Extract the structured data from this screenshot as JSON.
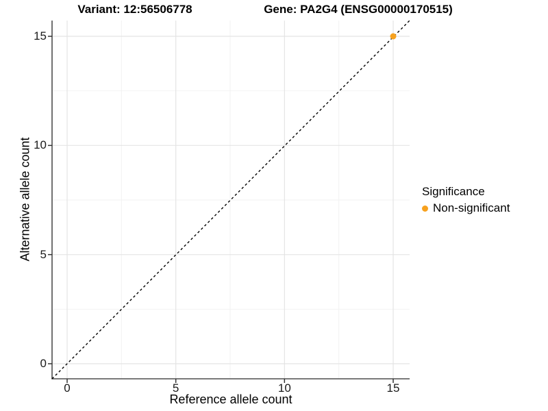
{
  "titles": {
    "variant": "Variant: 12:56506778",
    "gene": "Gene: PA2G4 (ENSG00000170515)"
  },
  "legend": {
    "title": "Significance",
    "items": [
      {
        "label": "Non-significant",
        "color": "#F7A11E"
      }
    ]
  },
  "colors": {
    "point_orange": "#F7A11E",
    "grid_major": "#e4e4e4",
    "grid_minor": "#f2f2f2",
    "axis_line": "#4d4d4d",
    "tick_mark": "#333333",
    "reference_line": "#000000"
  },
  "chart_data": {
    "type": "scatter",
    "title_left": "Variant: 12:56506778",
    "title_right": "Gene: PA2G4 (ENSG00000170515)",
    "xlabel": "Reference allele count",
    "ylabel": "Alternative allele count",
    "xlim": [
      -0.7,
      15.7
    ],
    "ylim": [
      -0.7,
      15.7
    ],
    "xticks": [
      0,
      5,
      10,
      15
    ],
    "yticks": [
      0,
      5,
      10,
      15
    ],
    "minor_gridlines": [
      2.5,
      7.5,
      12.5
    ],
    "grid": true,
    "reference_line": {
      "type": "identity",
      "style": "dashed",
      "color": "#000000"
    },
    "legend": {
      "title": "Significance",
      "position": "right"
    },
    "series": [
      {
        "name": "Non-significant",
        "color": "#F7A11E",
        "points": [
          {
            "x": 15,
            "y": 15
          }
        ]
      }
    ]
  }
}
